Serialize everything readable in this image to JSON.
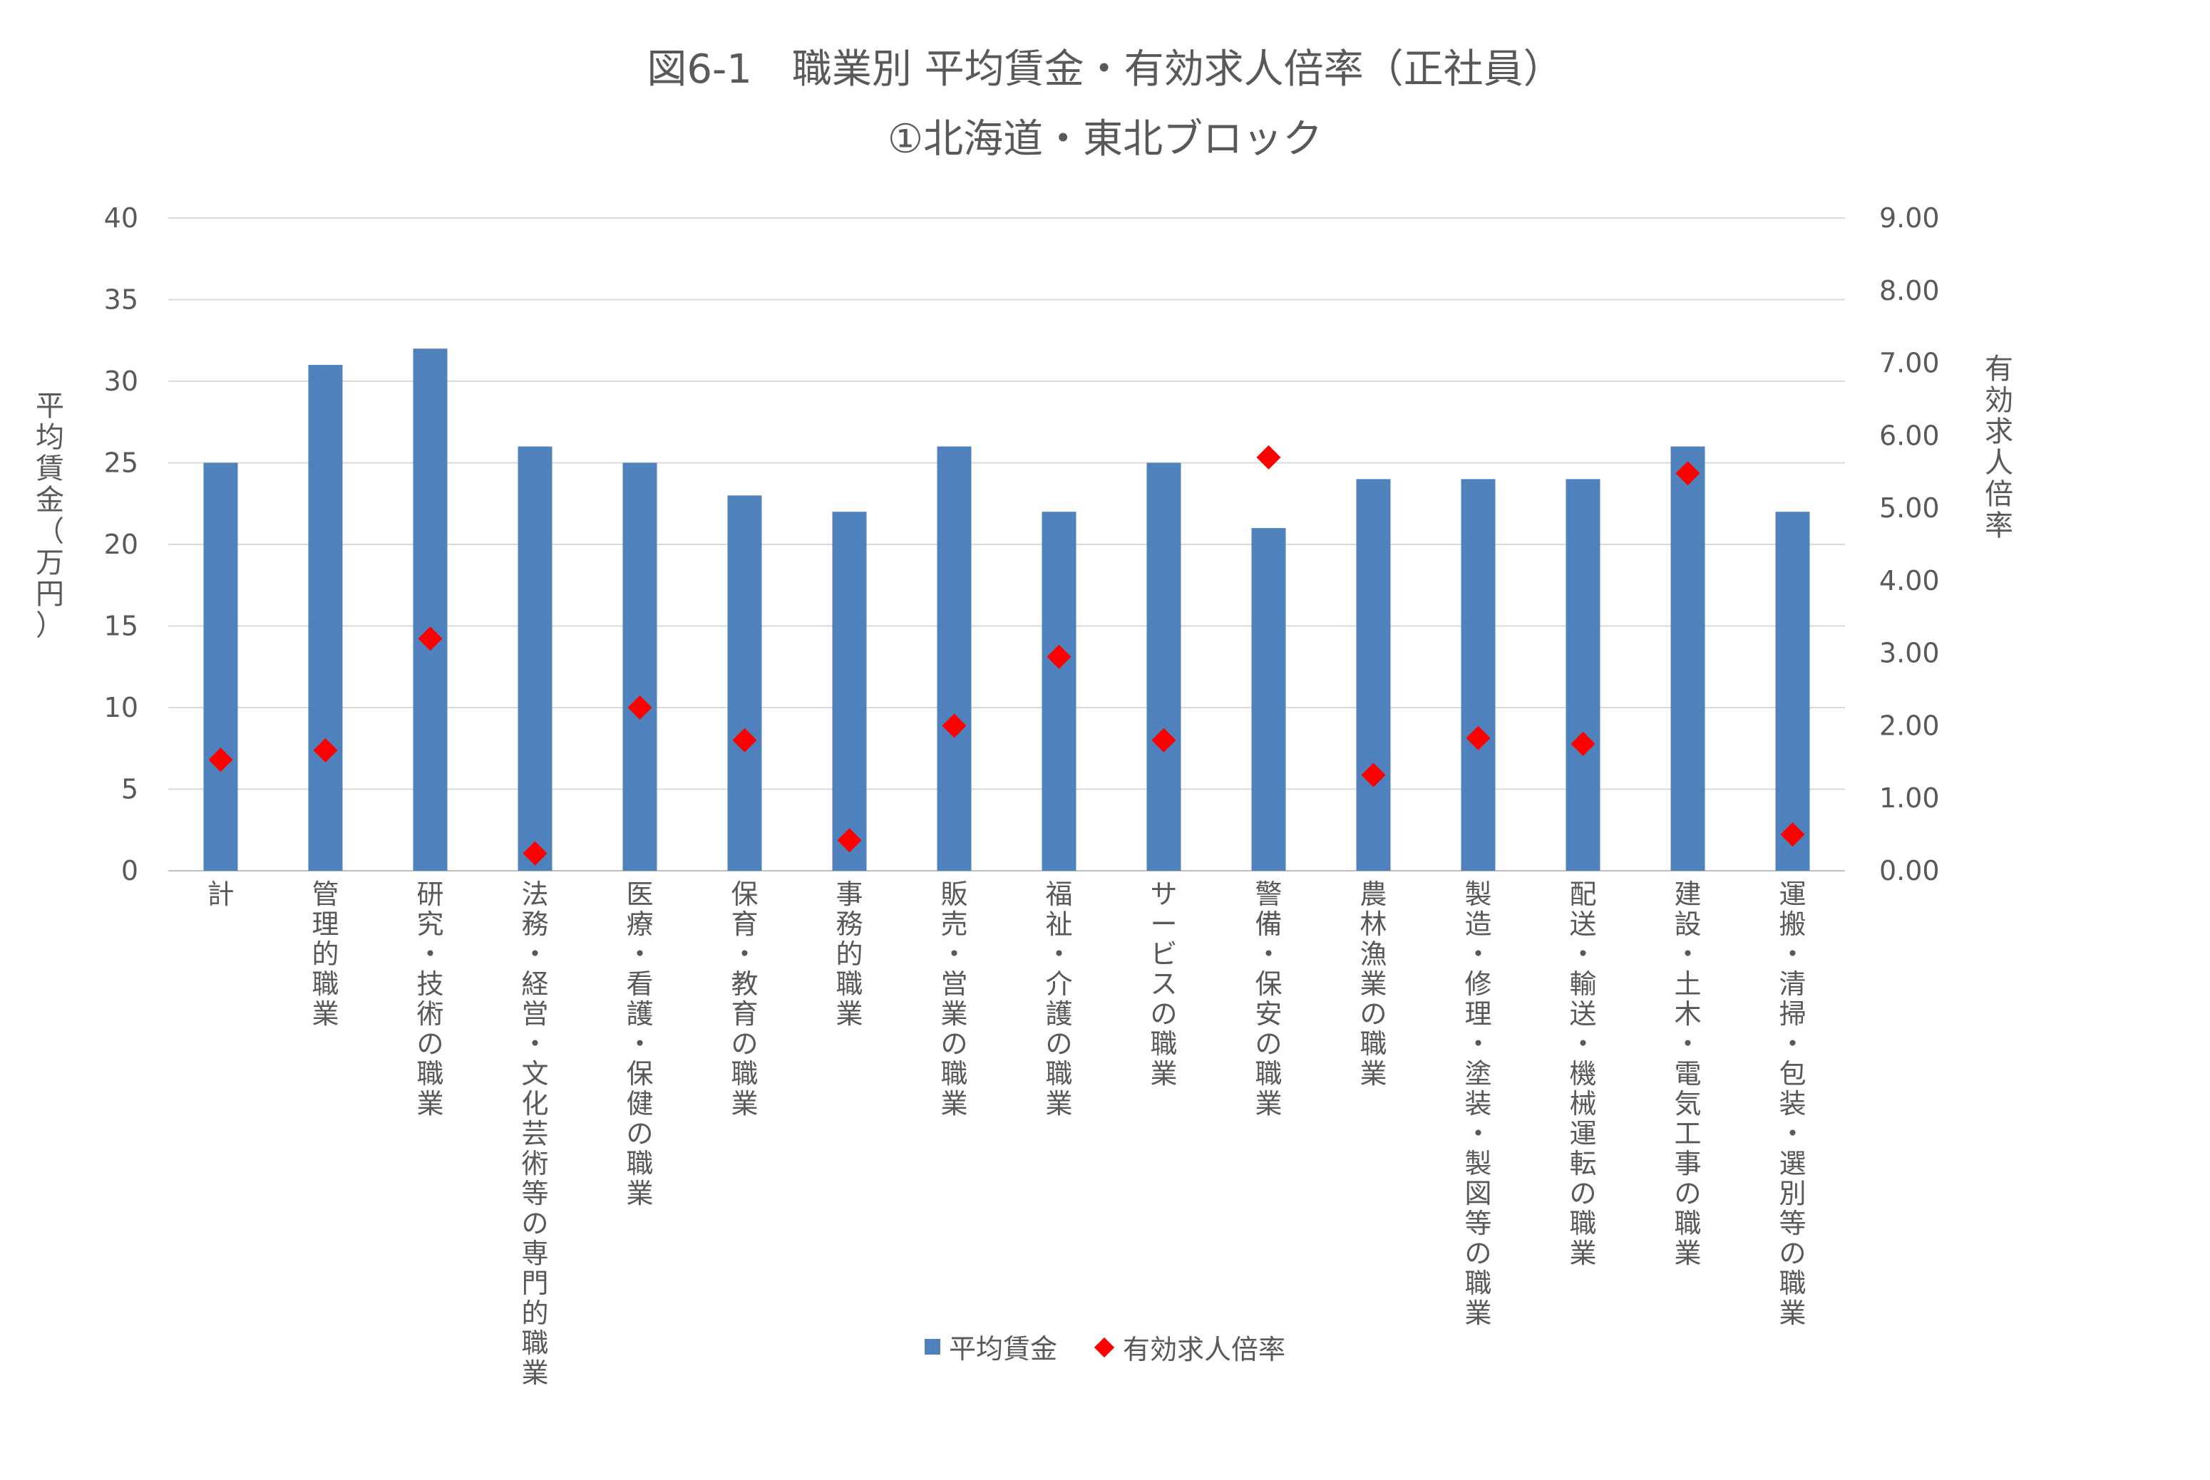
{
  "chart_data": {
    "type": "bar",
    "title": "図6-1　職業別 平均賃金・有効求人倍率（正社員）",
    "subtitle": "①北海道・東北ブロック",
    "ylabel": "平均賃金（万円）",
    "y2label": "有効求人倍率",
    "ylim": [
      0,
      40
    ],
    "y2lim": [
      0,
      9
    ],
    "yticks": [
      "0",
      "5",
      "10",
      "15",
      "20",
      "25",
      "30",
      "35",
      "40"
    ],
    "y2ticks": [
      "0.00",
      "1.00",
      "2.00",
      "3.00",
      "4.00",
      "5.00",
      "6.00",
      "7.00",
      "8.00",
      "9.00"
    ],
    "grid": true,
    "legend_position": "bottom",
    "categories": [
      "計",
      "管理的職業",
      "研究・技術の職業",
      "法務・経営・文化芸術等の専門的職業",
      "医療・看護・保健の職業",
      "保育・教育の職業",
      "事務的職業",
      "販売・営業の職業",
      "福祉・介護の職業",
      "サービスの職業",
      "警備・保安の職業",
      "農林漁業の職業",
      "製造・修理・塗装・製図等の職業",
      "配送・輸送・機械運転の職業",
      "建設・土木・電気工事の職業",
      "運搬・清掃・包装・選別等の職業"
    ],
    "series": [
      {
        "name": "平均賃金",
        "type": "bar",
        "axis": "left",
        "color": "#4f81bd",
        "values": [
          25,
          31,
          32,
          26,
          25,
          23,
          22,
          26,
          22,
          25,
          21,
          24,
          24,
          24,
          26,
          22
        ]
      },
      {
        "name": "有効求人倍率",
        "type": "scatter",
        "marker": "diamond",
        "axis": "right",
        "color": "#ff0000",
        "values": [
          1.53,
          1.66,
          3.2,
          0.24,
          2.25,
          1.8,
          0.42,
          2.0,
          2.95,
          1.8,
          5.7,
          1.32,
          1.83,
          1.75,
          5.48,
          0.5
        ]
      }
    ]
  }
}
